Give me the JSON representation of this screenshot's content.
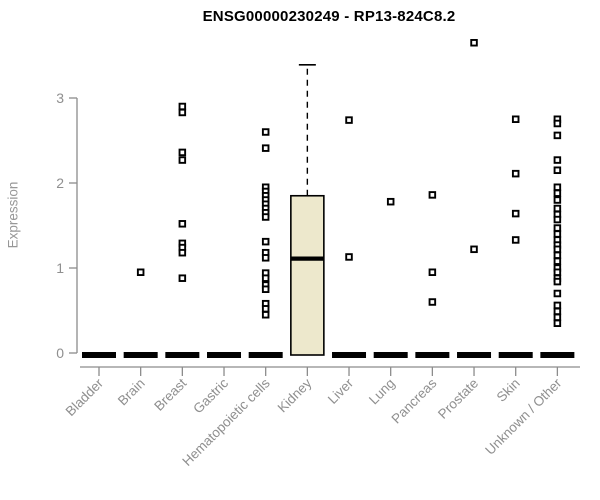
{
  "title": "ENSG00000230249 - RP13-824C8.2",
  "colors": {
    "box_fill": "#EDE8CC",
    "box_border": "#000000",
    "median": "#000000",
    "point_stroke": "#000000",
    "point_fill": "#ffffff",
    "zero_bar": "#000000",
    "axis_line": "#8c8c8c",
    "tick_label": "#8f8f8f",
    "title_color": "#000000"
  },
  "chart_data": {
    "type": "box",
    "title": "ENSG00000230249 - RP13-824C8.2",
    "xlabel": "",
    "ylabel": "Expression",
    "ylim": [
      0,
      3.7
    ],
    "yticks": [
      0,
      1,
      2,
      3
    ],
    "grid": false,
    "legend": false,
    "categories": [
      "Bladder",
      "Brain",
      "Breast",
      "Gastric",
      "Hematopoietic cells",
      "Kidney",
      "Liver",
      "Lung",
      "Pancreas",
      "Prostate",
      "Skin",
      "Unknown / Other"
    ],
    "series": [
      {
        "category": "Bladder",
        "zero_bar": true,
        "points": []
      },
      {
        "category": "Brain",
        "zero_bar": true,
        "points": [
          0.95
        ]
      },
      {
        "category": "Breast",
        "zero_bar": true,
        "points": [
          2.9,
          2.83,
          2.36,
          2.27,
          1.52,
          1.29,
          1.24,
          1.18,
          0.88
        ]
      },
      {
        "category": "Gastric",
        "zero_bar": true,
        "points": []
      },
      {
        "category": "Hematopoietic cells",
        "zero_bar": true,
        "points": [
          2.6,
          2.41,
          1.95,
          1.9,
          1.85,
          1.8,
          1.75,
          1.7,
          1.65,
          1.6,
          1.31,
          1.18,
          1.12,
          0.94,
          0.88,
          0.8,
          0.75,
          0.58,
          0.52,
          0.45
        ]
      },
      {
        "category": "Kidney",
        "zero_bar": false,
        "points": [],
        "box": {
          "whisker_high": 3.39,
          "q3": 1.85,
          "median": 1.11,
          "q1": 0.0
        }
      },
      {
        "category": "Liver",
        "zero_bar": true,
        "points": [
          2.74,
          1.13
        ]
      },
      {
        "category": "Lung",
        "zero_bar": true,
        "points": [
          1.78
        ]
      },
      {
        "category": "Pancreas",
        "zero_bar": true,
        "points": [
          1.86,
          0.95,
          0.6
        ]
      },
      {
        "category": "Prostate",
        "zero_bar": true,
        "points": [
          3.65,
          1.22
        ]
      },
      {
        "category": "Skin",
        "zero_bar": true,
        "points": [
          2.75,
          2.11,
          1.64,
          1.33
        ]
      },
      {
        "category": "Unknown / Other",
        "zero_bar": true,
        "points": [
          2.75,
          2.7,
          2.56,
          2.27,
          2.15,
          1.95,
          1.88,
          1.8,
          1.7,
          1.63,
          1.57,
          1.47,
          1.4,
          1.33,
          1.27,
          1.22,
          1.15,
          1.08,
          1.0,
          0.95,
          0.88,
          0.84,
          0.7,
          0.56,
          0.49,
          0.42,
          0.35
        ]
      }
    ]
  }
}
